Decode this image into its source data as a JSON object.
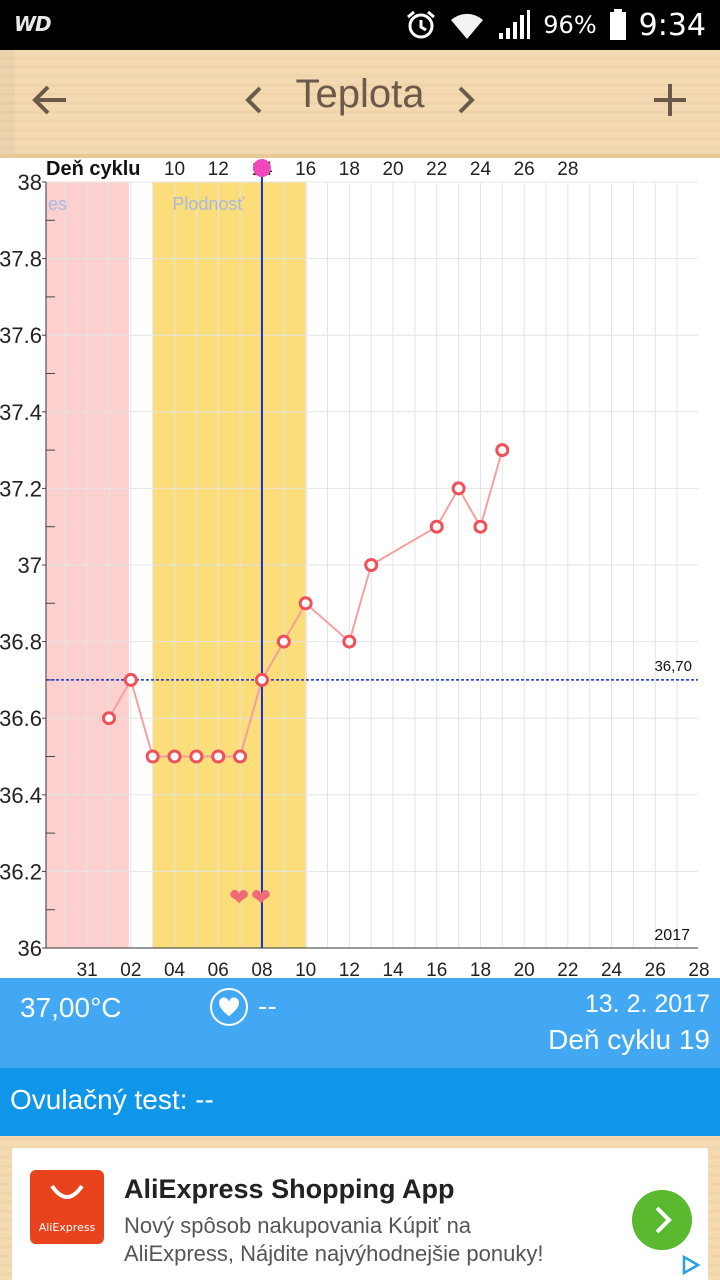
{
  "status_bar": {
    "carrier_logo": "WD",
    "battery": "96%",
    "time": "9:34"
  },
  "app_bar": {
    "title": "Teplota",
    "back_icon": "arrow-left-icon",
    "add_icon": "plus-icon"
  },
  "chart_data": {
    "type": "line",
    "top_axis_label": "Deň cyklu",
    "top_ticks": [
      "10",
      "12",
      "14",
      "16",
      "18",
      "20",
      "22",
      "24",
      "26",
      "28"
    ],
    "x_ticks": [
      "31",
      "02",
      "04",
      "06",
      "08",
      "10",
      "12",
      "14",
      "16",
      "18",
      "20",
      "22",
      "24",
      "26",
      "28"
    ],
    "y_ticks": [
      "38",
      "37.8",
      "37.6",
      "37.4",
      "37.2",
      "37",
      "36.8",
      "36.6",
      "36.4",
      "36.2",
      "36"
    ],
    "ylim": [
      36,
      38
    ],
    "year_label": "2017",
    "period_band_label": "es",
    "fertile_band_label": "Plodnosť",
    "fertile_range_days": [
      2,
      9
    ],
    "period_range_days": [
      -1,
      1
    ],
    "ovulation_day": 7,
    "cover_line": {
      "value": 36.7,
      "label": "36,70"
    },
    "heart_days": [
      6,
      7
    ],
    "series": [
      {
        "x": [
          0,
          1,
          2,
          3,
          4,
          5,
          6,
          7,
          8,
          9,
          11,
          12,
          15,
          16,
          17,
          18
        ],
        "y": [
          36.6,
          36.7,
          36.5,
          36.5,
          36.5,
          36.5,
          36.5,
          36.7,
          36.8,
          36.9,
          36.8,
          37.0,
          37.1,
          37.2,
          37.1,
          37.3
        ]
      }
    ],
    "colors": {
      "line": "#f4a0a0",
      "marker": "#f0505a",
      "fertile": "#fbdd7a",
      "period": "#fdd0d0",
      "ovulation": "#1a2fd0",
      "cover": "#1a2fd0",
      "heart": "#f06a78"
    }
  },
  "info": {
    "temperature": "37,00°C",
    "heart_value": "--",
    "date": "13. 2. 2017",
    "cycle_day": "Deň cyklu 19"
  },
  "ovulation_test": {
    "text": "Ovulačný test: --"
  },
  "ad": {
    "logo_text": "AliExpress",
    "title": "AliExpress Shopping App",
    "description": "Nový spôsob nakupovania Kúpiť na AliExpress, Nájdite najvýhodnejšie ponuky!"
  }
}
